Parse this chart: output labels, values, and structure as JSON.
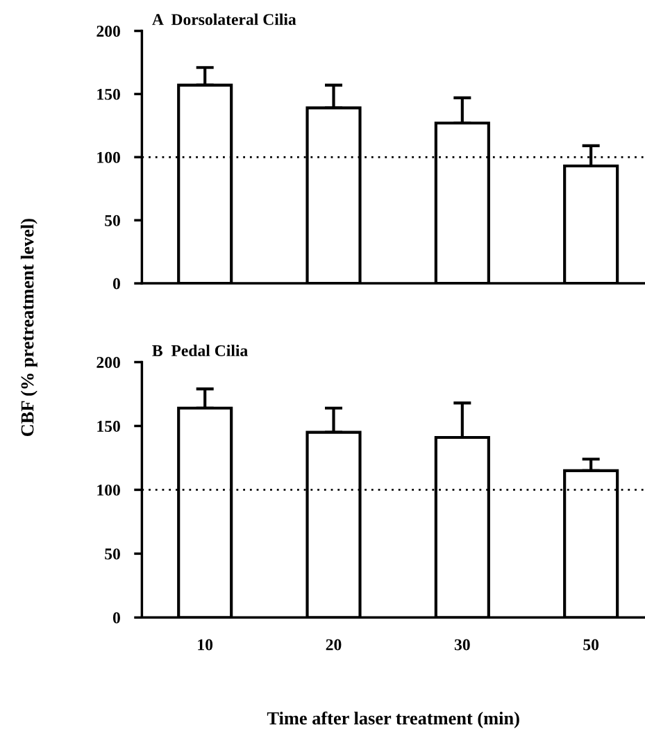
{
  "chart_data": [
    {
      "type": "bar",
      "title": "A  Dorsolateral Cilia",
      "ylabel": "CBF (% pretreatment level)",
      "categories": [
        "10",
        "20",
        "30",
        "50"
      ],
      "series": [
        {
          "color": "#ffffff",
          "values": [
            157,
            139,
            127,
            93
          ],
          "errors": [
            [
              157,
              171
            ],
            [
              139,
              157
            ],
            [
              127,
              147
            ],
            [
              93,
              109
            ]
          ]
        }
      ],
      "ylim": [
        0,
        200
      ],
      "yticks": [
        0,
        50,
        100,
        150,
        200
      ],
      "tick_labels": "y",
      "grid": false,
      "legend": false,
      "ref_lines": [
        {
          "axis": "y",
          "value": 100,
          "line_style": "dotted",
          "color": "#000000"
        }
      ]
    },
    {
      "type": "bar",
      "title": "B  Pedal Cilia",
      "xlabel": "Time after laser treatment (min)",
      "categories": [
        "10",
        "20",
        "30",
        "50"
      ],
      "series": [
        {
          "color": "#ffffff",
          "values": [
            164,
            145,
            141,
            115
          ],
          "errors": [
            [
              164,
              179
            ],
            [
              145,
              164
            ],
            [
              141,
              168
            ],
            [
              115,
              124
            ]
          ]
        }
      ],
      "ylim": [
        0,
        200
      ],
      "yticks": [
        0,
        50,
        100,
        150,
        200
      ],
      "grid": false,
      "legend": false,
      "ref_lines": [
        {
          "axis": "y",
          "value": 100,
          "line_style": "dotted",
          "color": "#000000"
        }
      ]
    }
  ]
}
